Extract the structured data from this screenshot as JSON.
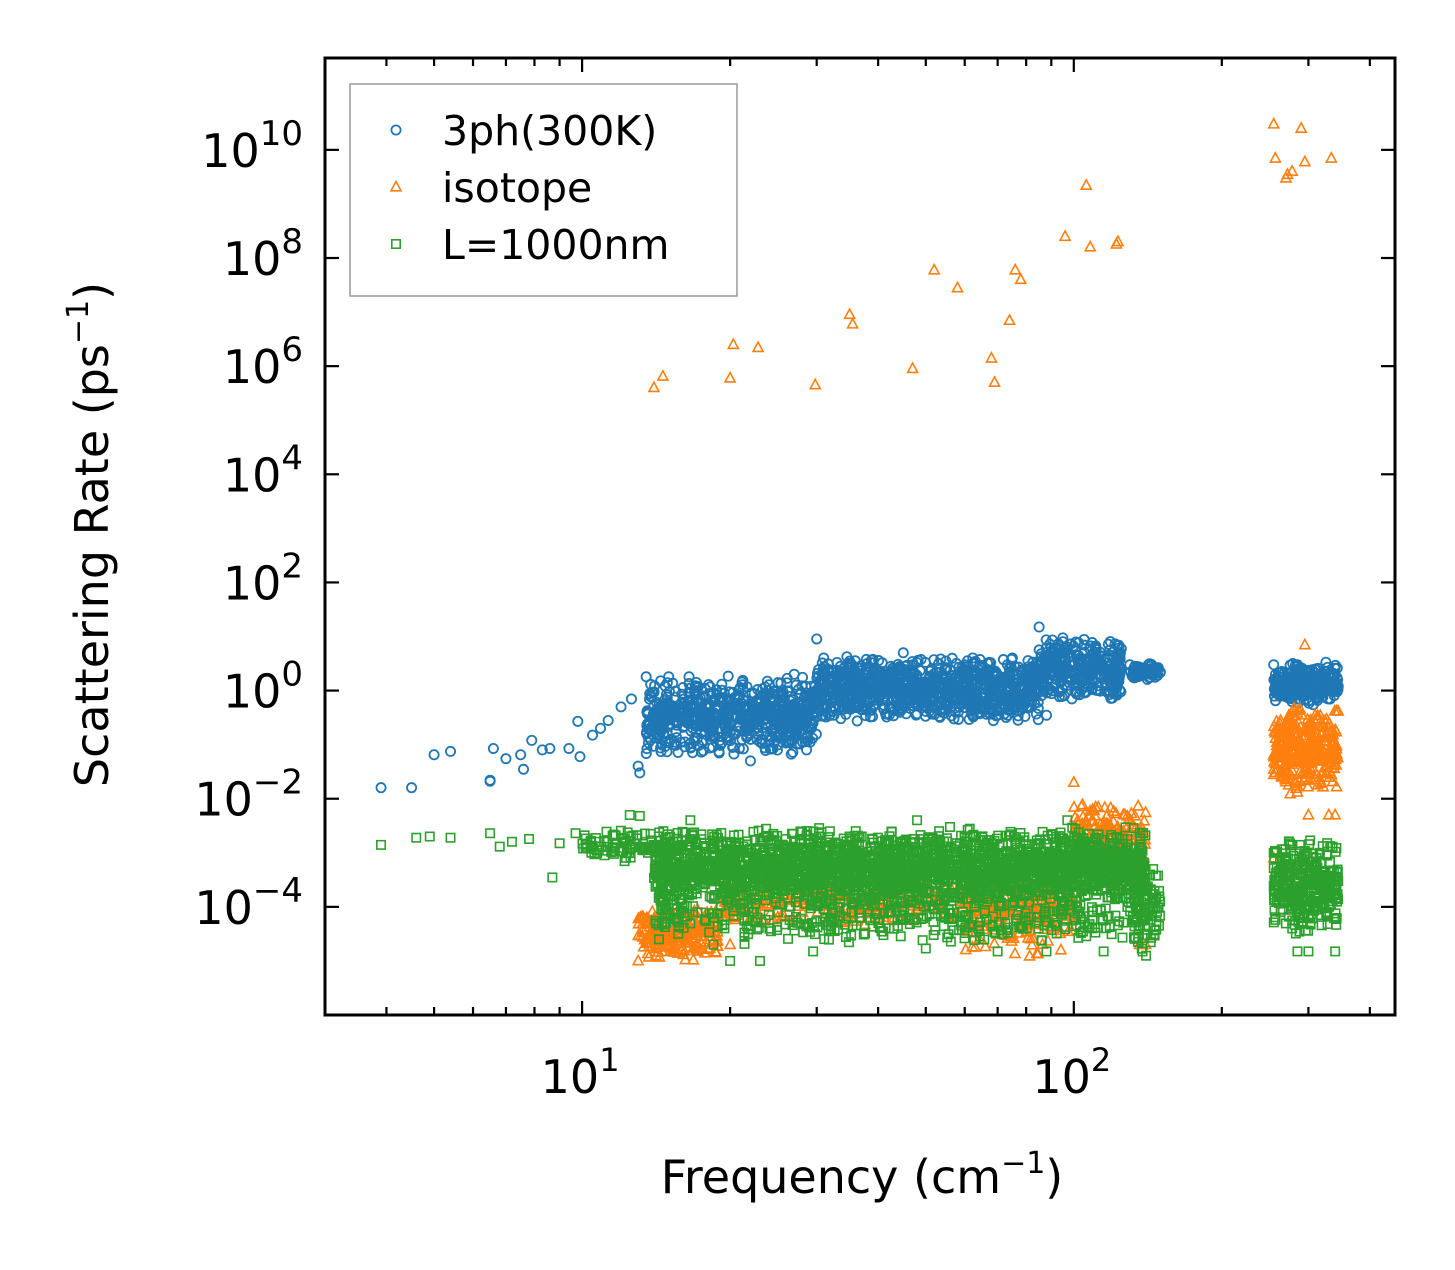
{
  "chart_data": {
    "type": "scatter",
    "xscale": "log",
    "yscale": "log",
    "xlim": [
      3.0,
      450
    ],
    "ylim": [
      1e-06,
      500000000000.0
    ],
    "xlabel": "Frequency (cm",
    "xlabel_sup": "−1",
    "xlabel_close": ")",
    "ylabel": "Scattering Rate (ps",
    "ylabel_sup": "−1",
    "ylabel_close": ")",
    "x_ticks": [
      {
        "base": "10",
        "exp": "1",
        "value": 10
      },
      {
        "base": "10",
        "exp": "2",
        "value": 100
      }
    ],
    "y_ticks": [
      {
        "base": "10",
        "exp": "10",
        "value": 10000000000.0
      },
      {
        "base": "10",
        "exp": "8",
        "value": 100000000.0
      },
      {
        "base": "10",
        "exp": "6",
        "value": 1000000.0
      },
      {
        "base": "10",
        "exp": "4",
        "value": 10000.0
      },
      {
        "base": "10",
        "exp": "2",
        "value": 100.0
      },
      {
        "base": "10",
        "exp": "0",
        "value": 1
      },
      {
        "base": "10",
        "exp": "−2",
        "value": 0.01
      },
      {
        "base": "10",
        "exp": "−4",
        "value": 0.0001
      }
    ],
    "legend_position": "top-left",
    "series": [
      {
        "name": "3ph(300K)",
        "marker": "circle",
        "color": "#1f77b4",
        "points": [
          [
            3.9,
            0.016
          ],
          [
            4.5,
            0.016
          ],
          [
            5.0,
            0.065
          ],
          [
            5.4,
            0.075
          ],
          [
            6.5,
            0.022
          ],
          [
            6.5,
            0.021
          ],
          [
            6.6,
            0.085
          ],
          [
            7.0,
            0.055
          ],
          [
            7.5,
            0.065
          ],
          [
            7.6,
            0.035
          ],
          [
            7.9,
            0.12
          ],
          [
            8.3,
            0.08
          ],
          [
            8.6,
            0.085
          ],
          [
            9.4,
            0.085
          ],
          [
            9.8,
            0.27
          ],
          [
            9.9,
            0.06
          ],
          [
            10.5,
            0.15
          ],
          [
            10.9,
            0.2
          ],
          [
            11.3,
            0.28
          ],
          [
            12.0,
            0.5
          ],
          [
            12.6,
            0.7
          ],
          [
            13.0,
            0.04
          ],
          [
            13.1,
            0.03
          ],
          [
            13.5,
            1.8
          ],
          [
            14.2,
            0.35
          ],
          [
            15.0,
            1.8
          ],
          [
            16.5,
            1.8
          ],
          [
            18.0,
            0.2
          ],
          [
            19.0,
            0.07
          ],
          [
            22.0,
            0.05
          ],
          [
            24.0,
            0.12
          ],
          [
            27.0,
            2.0
          ],
          [
            30.0,
            9.0
          ],
          [
            31.0,
            4.0
          ],
          [
            35.0,
            3.5
          ],
          [
            40.0,
            1.2
          ],
          [
            45.0,
            5.0
          ],
          [
            50.0,
            0.5
          ],
          [
            60.0,
            3.0
          ],
          [
            70.0,
            0.35
          ],
          [
            75.0,
            4.0
          ],
          [
            85.0,
            15.0
          ],
          [
            88.0,
            0.35
          ],
          [
            95.0,
            8.0
          ],
          [
            100.0,
            2.0
          ],
          [
            110.0,
            1.5
          ],
          [
            120.0,
            1.0
          ],
          [
            130.0,
            3.0
          ],
          [
            145.0,
            2.0
          ],
          [
            150.0,
            2.2
          ],
          [
            255.0,
            3.0
          ],
          [
            265.0,
            0.9
          ],
          [
            285.0,
            3.0
          ],
          [
            300.0,
            1.5
          ],
          [
            320.0,
            2.0
          ],
          [
            345.0,
            1.2
          ]
        ],
        "bands": [
          {
            "x": [
              13.5,
              30.0
            ],
            "y": [
              0.06,
              2.0
            ],
            "n": 700
          },
          {
            "x": [
              30.0,
              85.0
            ],
            "y": [
              0.25,
              4.5
            ],
            "n": 1000
          },
          {
            "x": [
              85.0,
              125.0
            ],
            "y": [
              0.6,
              10.0
            ],
            "n": 350
          },
          {
            "x": [
              130.0,
              150.0
            ],
            "y": [
              1.6,
              3.2
            ],
            "n": 60
          },
          {
            "x": [
              255.0,
              345.0
            ],
            "y": [
              0.5,
              3.5
            ],
            "n": 250
          }
        ]
      },
      {
        "name": "isotope",
        "marker": "triangle",
        "color": "#ff7f0e",
        "points": [
          [
            14.0,
            400000
          ],
          [
            14.6,
            650000
          ],
          [
            20.0,
            600000
          ],
          [
            20.3,
            2500000
          ],
          [
            22.8,
            2200000
          ],
          [
            29.8,
            450000
          ],
          [
            35.0,
            9000000
          ],
          [
            35.5,
            6000000
          ],
          [
            47.0,
            900000
          ],
          [
            52.0,
            60000000
          ],
          [
            58.0,
            28000000
          ],
          [
            68.0,
            1400000
          ],
          [
            69.0,
            500000
          ],
          [
            74.0,
            7000000
          ],
          [
            76.0,
            60000000
          ],
          [
            78.0,
            40000000
          ],
          [
            96.0,
            250000000
          ],
          [
            106.0,
            2200000000
          ],
          [
            108.0,
            160000000
          ],
          [
            122.0,
            180000000
          ],
          [
            123.0,
            200000000
          ],
          [
            255.0,
            30000000000
          ],
          [
            257.0,
            7000000000
          ],
          [
            270.0,
            3000000000
          ],
          [
            272.0,
            3500000000
          ],
          [
            278.0,
            4000000000
          ],
          [
            290.0,
            25000000000
          ],
          [
            295.0,
            6000000000
          ],
          [
            334.0,
            7000000000
          ],
          [
            13.0,
            1e-05
          ],
          [
            15.0,
            2e-05
          ],
          [
            20.0,
            2e-05
          ],
          [
            100.0,
            0.02
          ],
          [
            110.0,
            0.006
          ],
          [
            127.0,
            0.005
          ],
          [
            136.0,
            2e-05
          ],
          [
            140.0,
            2e-05
          ],
          [
            255.0,
            0.0008
          ],
          [
            295.0,
            7.0
          ],
          [
            300.0,
            0.005
          ],
          [
            330.0,
            0.005
          ],
          [
            340.0,
            0.005
          ]
        ],
        "bands": [
          {
            "x": [
              13.0,
              19.0
            ],
            "y": [
              1e-05,
              0.0001
            ],
            "n": 250
          },
          {
            "x": [
              19.0,
              100.0
            ],
            "y": [
              4e-05,
              0.0004
            ],
            "n": 400
          },
          {
            "x": [
              60.0,
              100.0
            ],
            "y": [
              1e-05,
              0.0003
            ],
            "n": 120
          },
          {
            "x": [
              100.0,
              140.0
            ],
            "y": [
              0.0003,
              0.01
            ],
            "n": 200
          },
          {
            "x": [
              255.0,
              345.0
            ],
            "y": [
              0.01,
              0.6
            ],
            "n": 320
          }
        ]
      },
      {
        "name": "L=1000nm",
        "marker": "square",
        "color": "#2ca02c",
        "points": [
          [
            3.9,
            0.0014
          ],
          [
            4.6,
            0.0019
          ],
          [
            4.9,
            0.002
          ],
          [
            5.4,
            0.0019
          ],
          [
            6.5,
            0.0023
          ],
          [
            6.8,
            0.0013
          ],
          [
            7.2,
            0.0016
          ],
          [
            7.8,
            0.0018
          ],
          [
            8.7,
            0.00035
          ],
          [
            9.0,
            0.0015
          ],
          [
            9.7,
            0.0023
          ],
          [
            10.2,
            0.0014
          ],
          [
            11.2,
            0.0016
          ],
          [
            12.5,
            0.005
          ],
          [
            13.1,
            0.0048
          ],
          [
            12.2,
            0.0007
          ],
          [
            14.0,
            0.0014
          ],
          [
            16.6,
            0.004
          ],
          [
            18.5,
            2e-05
          ],
          [
            20.0,
            1e-05
          ],
          [
            23.0,
            1e-05
          ],
          [
            26.5,
            0.0004
          ],
          [
            28.0,
            0.0012
          ],
          [
            29.5,
            1.5e-05
          ],
          [
            35.0,
            0.002
          ],
          [
            41.0,
            3e-05
          ],
          [
            48.0,
            0.004
          ],
          [
            50.0,
            1.7e-05
          ],
          [
            56.0,
            0.003
          ],
          [
            60.0,
            0.002
          ],
          [
            70.0,
            1.5e-05
          ],
          [
            88.0,
            1.5e-05
          ],
          [
            97.0,
            0.004
          ],
          [
            109.0,
            4e-05
          ],
          [
            115.0,
            1.5e-05
          ],
          [
            138.0,
            1.5e-05
          ],
          [
            145.0,
            0.0005
          ],
          [
            255.0,
            0.001
          ],
          [
            275.0,
            0.0015
          ],
          [
            285.0,
            1.5e-05
          ],
          [
            300.0,
            1.5e-05
          ],
          [
            340.0,
            1.5e-05
          ],
          [
            345.0,
            0.0003
          ]
        ],
        "bands": [
          {
            "x": [
              10.0,
              14.0
            ],
            "y": [
              0.0007,
              0.003
            ],
            "n": 80
          },
          {
            "x": [
              14.0,
              140.0
            ],
            "y": [
              0.0001,
              0.003
            ],
            "n": 2600
          },
          {
            "x": [
              14.0,
              140.0
            ],
            "y": [
              2e-05,
              0.0002
            ],
            "n": 400
          },
          {
            "x": [
              130.0,
              150.0
            ],
            "y": [
              1e-05,
              0.001
            ],
            "n": 80
          },
          {
            "x": [
              255.0,
              345.0
            ],
            "y": [
              3e-05,
              0.002
            ],
            "n": 350
          }
        ]
      }
    ]
  }
}
